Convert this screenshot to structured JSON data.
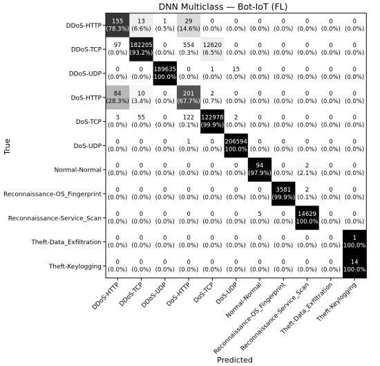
{
  "chart_data": {
    "type": "heatmap",
    "title": "DNN Multiclass — Bot-IoT (FL)",
    "xlabel": "Predicted",
    "ylabel": "True",
    "labels": [
      "DDoS-HTTP",
      "DDoS-TCP",
      "DDoS-UDP",
      "DoS-HTTP",
      "DoS-TCP",
      "DoS-UDP",
      "Normal-Normal",
      "Reconnaissance-OS_Fingerprint",
      "Reconnaissance-Service_Scan",
      "Theft-Data_Exfiltration",
      "Theft-Keylogging"
    ],
    "counts": [
      [
        155,
        13,
        1,
        29,
        0,
        0,
        0,
        0,
        0,
        0,
        0
      ],
      [
        97,
        182205,
        0,
        554,
        12620,
        0,
        0,
        0,
        0,
        0,
        0
      ],
      [
        0,
        0,
        189635,
        0,
        1,
        15,
        0,
        0,
        0,
        0,
        0
      ],
      [
        84,
        10,
        0,
        201,
        2,
        0,
        0,
        0,
        0,
        0,
        0
      ],
      [
        3,
        55,
        0,
        122,
        122978,
        2,
        0,
        0,
        0,
        0,
        0
      ],
      [
        0,
        0,
        0,
        1,
        0,
        206594,
        0,
        0,
        0,
        0,
        0
      ],
      [
        0,
        0,
        0,
        0,
        0,
        0,
        94,
        0,
        2,
        0,
        0
      ],
      [
        0,
        0,
        0,
        0,
        0,
        0,
        0,
        3581,
        2,
        0,
        0
      ],
      [
        0,
        0,
        0,
        0,
        0,
        0,
        5,
        0,
        14629,
        0,
        0
      ],
      [
        0,
        0,
        0,
        0,
        0,
        0,
        0,
        0,
        0,
        0,
        1
      ],
      [
        0,
        0,
        0,
        0,
        0,
        0,
        0,
        0,
        0,
        0,
        14
      ]
    ],
    "percents": [
      [
        "78.3%",
        "6.6%",
        "0.5%",
        "14.6%",
        "0.0%",
        "0.0%",
        "0.0%",
        "0.0%",
        "0.0%",
        "0.0%",
        "0.0%"
      ],
      [
        "0.0%",
        "93.2%",
        "0.0%",
        "0.3%",
        "6.5%",
        "0.0%",
        "0.0%",
        "0.0%",
        "0.0%",
        "0.0%",
        "0.0%"
      ],
      [
        "0.0%",
        "0.0%",
        "100.0%",
        "0.0%",
        "0.0%",
        "0.0%",
        "0.0%",
        "0.0%",
        "0.0%",
        "0.0%",
        "0.0%"
      ],
      [
        "28.3%",
        "3.4%",
        "0.0%",
        "67.7%",
        "0.7%",
        "0.0%",
        "0.0%",
        "0.0%",
        "0.0%",
        "0.0%",
        "0.0%"
      ],
      [
        "0.0%",
        "0.0%",
        "0.0%",
        "0.1%",
        "99.9%",
        "0.0%",
        "0.0%",
        "0.0%",
        "0.0%",
        "0.0%",
        "0.0%"
      ],
      [
        "0.0%",
        "0.0%",
        "0.0%",
        "0.0%",
        "0.0%",
        "100.0%",
        "0.0%",
        "0.0%",
        "0.0%",
        "0.0%",
        "0.0%"
      ],
      [
        "0.0%",
        "0.0%",
        "0.0%",
        "0.0%",
        "0.0%",
        "0.0%",
        "97.9%",
        "0.0%",
        "2.1%",
        "0.0%",
        "0.0%"
      ],
      [
        "0.0%",
        "0.0%",
        "0.0%",
        "0.0%",
        "0.0%",
        "0.0%",
        "0.0%",
        "99.9%",
        "0.1%",
        "0.0%",
        "0.0%"
      ],
      [
        "0.0%",
        "0.0%",
        "0.0%",
        "0.0%",
        "0.0%",
        "0.0%",
        "0.0%",
        "0.0%",
        "100.0%",
        "0.0%",
        "0.0%"
      ],
      [
        "0.0%",
        "0.0%",
        "0.0%",
        "0.0%",
        "0.0%",
        "0.0%",
        "0.0%",
        "0.0%",
        "0.0%",
        "0.0%",
        "100.0%"
      ],
      [
        "0.0%",
        "0.0%",
        "0.0%",
        "0.0%",
        "0.0%",
        "0.0%",
        "0.0%",
        "0.0%",
        "0.0%",
        "0.0%",
        "100.0%"
      ]
    ],
    "color_scale": {
      "low": "#ffffff",
      "high": "#000000"
    },
    "grid": false,
    "legend": "none"
  }
}
